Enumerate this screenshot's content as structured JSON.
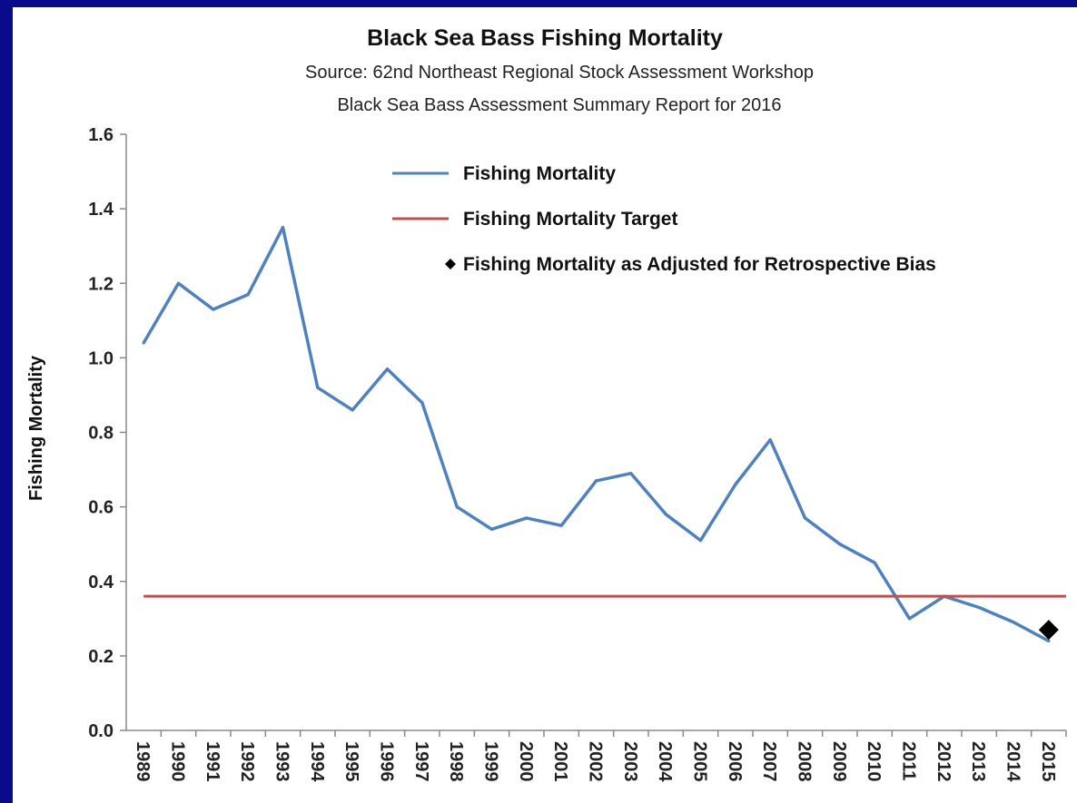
{
  "chart_data": {
    "type": "line",
    "title": "Black Sea Bass Fishing Mortality",
    "subtitle_lines": [
      "Source: 62nd Northeast Regional Stock Assessment Workshop",
      "Black Sea Bass Assessment Summary Report for 2016"
    ],
    "xlabel": "",
    "ylabel": "Fishing Mortality",
    "ylim": [
      0,
      1.6
    ],
    "yticks": [
      "0.0",
      "0.2",
      "0.4",
      "0.6",
      "0.8",
      "1.0",
      "1.2",
      "1.4",
      "1.6"
    ],
    "grid": false,
    "legend_position": "top-center",
    "categories": [
      "1989",
      "1990",
      "1991",
      "1992",
      "1993",
      "1994",
      "1995",
      "1996",
      "1997",
      "1998",
      "1999",
      "2000",
      "2001",
      "2002",
      "2003",
      "2004",
      "2005",
      "2006",
      "2007",
      "2008",
      "2009",
      "2010",
      "2011",
      "2012",
      "2013",
      "2014",
      "2015"
    ],
    "series": [
      {
        "name": "Fishing Mortality",
        "type": "line",
        "color": "#4f81bd",
        "values": [
          1.04,
          1.2,
          1.13,
          1.17,
          1.35,
          0.92,
          0.86,
          0.97,
          0.88,
          0.6,
          0.54,
          0.57,
          0.55,
          0.67,
          0.69,
          0.58,
          0.51,
          0.66,
          0.78,
          0.57,
          0.5,
          0.45,
          0.3,
          0.36,
          0.33,
          0.29,
          0.24
        ]
      },
      {
        "name": "Fishing Mortality Target",
        "type": "hline",
        "color": "#c0504d",
        "value": 0.36
      },
      {
        "name": "Fishing Mortality as Adjusted for Retrospective Bias",
        "type": "point",
        "color": "#000000",
        "x": "2015",
        "value": 0.27
      }
    ]
  }
}
